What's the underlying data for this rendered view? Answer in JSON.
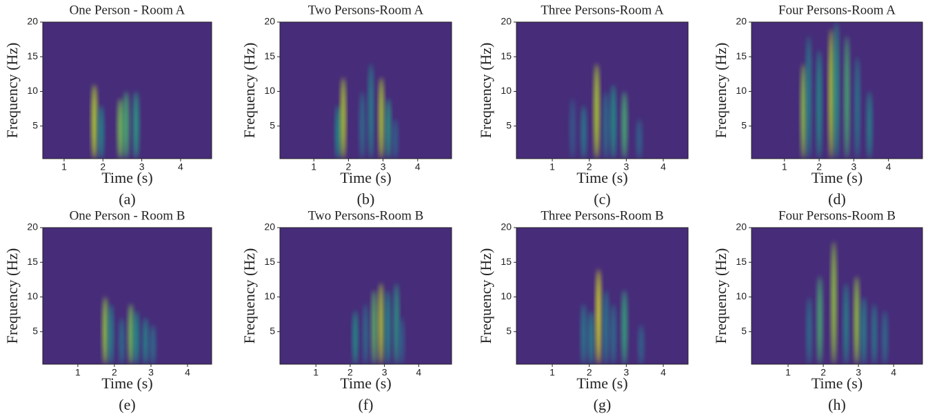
{
  "chart_data": [
    {
      "type": "spectrogram",
      "title": "One Person - Room A",
      "xlabel": "Time (s)",
      "ylabel": "Frequency (Hz)",
      "caption": "(a)",
      "colormap": "viridis",
      "xlim": [
        0.45,
        4.8
      ],
      "ylim": [
        0.3,
        20
      ],
      "xticks": [
        1,
        2,
        3,
        4
      ],
      "yticks": [
        5,
        10,
        15,
        20
      ],
      "x": [
        1.78,
        1.95,
        2.45,
        2.6,
        2.85
      ],
      "values": [
        11,
        8,
        9,
        10,
        10
      ],
      "intensity": [
        0.9,
        0.5,
        0.8,
        0.7,
        0.6
      ]
    },
    {
      "type": "spectrogram",
      "title": "Two Persons-Room A",
      "xlabel": "Time (s)",
      "ylabel": "Frequency (Hz)",
      "caption": "(b)",
      "colormap": "viridis",
      "xlim": [
        0.02,
        4.98
      ],
      "ylim": [
        0.3,
        20
      ],
      "xticks": [
        1,
        2,
        3,
        4
      ],
      "yticks": [
        5,
        10,
        15,
        20
      ],
      "x": [
        1.7,
        1.85,
        2.4,
        2.65,
        2.95,
        3.15,
        3.35
      ],
      "values": [
        8,
        12,
        10,
        14,
        12,
        9,
        6
      ],
      "intensity": [
        0.55,
        0.9,
        0.4,
        0.5,
        0.9,
        0.6,
        0.35
      ]
    },
    {
      "type": "spectrogram",
      "title": "Three Persons-Room A",
      "xlabel": "Time (s)",
      "ylabel": "Frequency (Hz)",
      "caption": "(c)",
      "colormap": "viridis",
      "xlim": [
        0.03,
        4.67
      ],
      "ylim": [
        0.3,
        20
      ],
      "xticks": [
        1,
        2,
        3,
        4
      ],
      "yticks": [
        5,
        10,
        15,
        20
      ],
      "x": [
        1.55,
        1.85,
        2.2,
        2.45,
        2.65,
        2.95,
        3.35
      ],
      "values": [
        9,
        8,
        14,
        10,
        11,
        10,
        6
      ],
      "intensity": [
        0.3,
        0.45,
        0.9,
        0.4,
        0.55,
        0.7,
        0.35
      ]
    },
    {
      "type": "spectrogram",
      "title": "Four Persons-Room A",
      "xlabel": "Time (s)",
      "ylabel": "Frequency (Hz)",
      "caption": "(d)",
      "colormap": "viridis",
      "xlim": [
        0.05,
        4.98
      ],
      "ylim": [
        0.3,
        20
      ],
      "xticks": [
        1,
        2,
        3,
        4
      ],
      "yticks": [
        5,
        10,
        15,
        20
      ],
      "x": [
        1.55,
        1.7,
        2.0,
        2.35,
        2.5,
        2.8,
        3.1,
        3.45
      ],
      "values": [
        14,
        18,
        16,
        19,
        20,
        18,
        15,
        10
      ],
      "intensity": [
        0.85,
        0.5,
        0.55,
        0.9,
        0.6,
        0.7,
        0.45,
        0.5
      ]
    },
    {
      "type": "spectrogram",
      "title": "One Person - Room B",
      "xlabel": "Time (s)",
      "ylabel": "Frequency (Hz)",
      "caption": "(e)",
      "colormap": "viridis",
      "xlim": [
        0.04,
        4.66
      ],
      "ylim": [
        0.3,
        20
      ],
      "xticks": [
        1,
        2,
        3,
        4
      ],
      "yticks": [
        5,
        10,
        15,
        20
      ],
      "x": [
        1.75,
        1.9,
        2.2,
        2.45,
        2.6,
        2.85,
        3.05
      ],
      "values": [
        10,
        9,
        7,
        9,
        8,
        7,
        6
      ],
      "intensity": [
        0.85,
        0.5,
        0.4,
        0.8,
        0.55,
        0.5,
        0.4
      ]
    },
    {
      "type": "spectrogram",
      "title": "Two Persons-Room B",
      "xlabel": "Time (s)",
      "ylabel": "Frequency (Hz)",
      "caption": "(f)",
      "colormap": "viridis",
      "xlim": [
        -0.05,
        4.96
      ],
      "ylim": [
        0.3,
        20
      ],
      "xticks": [
        1,
        2,
        3,
        4
      ],
      "yticks": [
        5,
        10,
        15,
        20
      ],
      "x": [
        2.15,
        2.45,
        2.7,
        2.9,
        3.1,
        3.35,
        3.5
      ],
      "values": [
        8,
        9,
        11,
        12,
        11,
        12,
        7
      ],
      "intensity": [
        0.55,
        0.4,
        0.75,
        0.9,
        0.55,
        0.6,
        0.35
      ]
    },
    {
      "type": "spectrogram",
      "title": "Three Persons-Room B",
      "xlabel": "Time (s)",
      "ylabel": "Frequency (Hz)",
      "caption": "(g)",
      "colormap": "viridis",
      "xlim": [
        0.03,
        4.67
      ],
      "ylim": [
        0.3,
        20
      ],
      "xticks": [
        1,
        2,
        3,
        4
      ],
      "yticks": [
        5,
        10,
        15,
        20
      ],
      "x": [
        1.85,
        2.05,
        2.25,
        2.45,
        2.65,
        2.95,
        3.4
      ],
      "values": [
        9,
        8,
        14,
        11,
        9,
        11,
        6
      ],
      "intensity": [
        0.45,
        0.5,
        0.95,
        0.45,
        0.4,
        0.65,
        0.35
      ]
    },
    {
      "type": "spectrogram",
      "title": "Four Persons-Room B",
      "xlabel": "Time (s)",
      "ylabel": "Frequency (Hz)",
      "caption": "(h)",
      "colormap": "viridis",
      "xlim": [
        -0.04,
        4.82
      ],
      "ylim": [
        0.3,
        20
      ],
      "xticks": [
        1,
        2,
        3,
        4
      ],
      "yticks": [
        5,
        10,
        15,
        20
      ],
      "x": [
        1.6,
        1.9,
        2.3,
        2.65,
        2.95,
        3.15,
        3.45,
        3.75
      ],
      "values": [
        10,
        13,
        18,
        12,
        13,
        10,
        9,
        8
      ],
      "intensity": [
        0.4,
        0.7,
        0.85,
        0.5,
        0.85,
        0.5,
        0.45,
        0.4
      ]
    }
  ]
}
